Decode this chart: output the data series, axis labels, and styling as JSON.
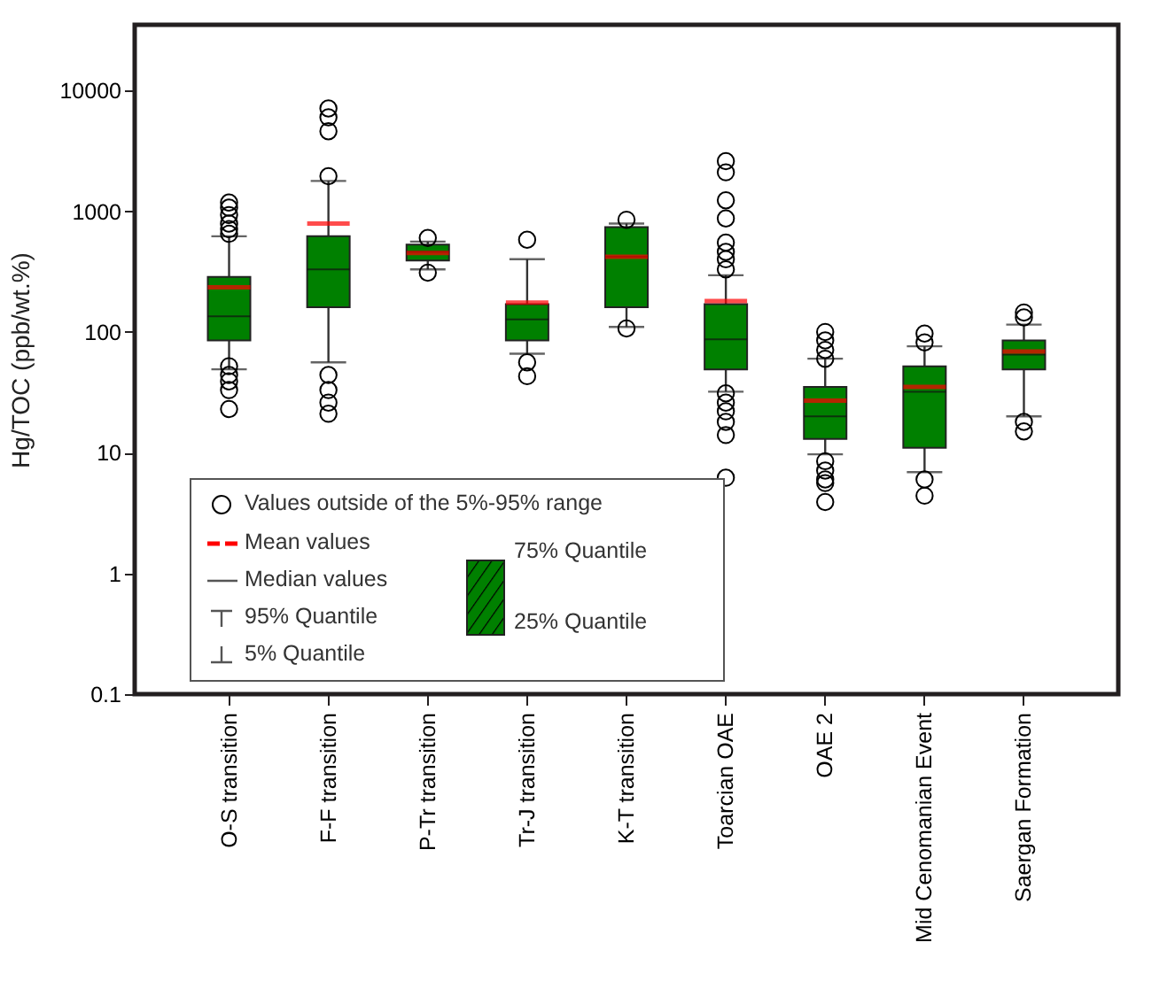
{
  "chart_data": {
    "type": "box",
    "ylabel": "Hg/TOC (ppb/wt.%)",
    "log": true,
    "ylim": [
      0.1,
      35000
    ],
    "yticks": [
      0.1,
      1,
      10,
      100,
      1000,
      10000
    ],
    "grid": false,
    "marker": "circle",
    "categories": [
      "O-S transition",
      "F-F transition",
      "P-Tr transition",
      "Tr-J transition",
      "K-T transition",
      "Toarcian OAE",
      "OAE 2",
      "Mid Cenomanian Event",
      "Saergan Formation"
    ],
    "series": [
      {
        "color": "#008000",
        "boxes": [
          {
            "low": 49,
            "q1": 85,
            "median": 135,
            "q3": 286,
            "high": 620,
            "mean": 234,
            "outliers": [
              1180,
              1070,
              930,
              790,
              710,
              650,
              52,
              44,
              39,
              33,
              23
            ]
          },
          {
            "low": 56,
            "q1": 160,
            "median": 330,
            "q3": 620,
            "high": 1780,
            "mean": 790,
            "outliers": [
              7100,
              6000,
              4600,
              1950,
              44,
              33,
              26,
              21
            ]
          },
          {
            "low": 330,
            "q1": 390,
            "median": 460,
            "q3": 530,
            "high": 560,
            "mean": 450,
            "outliers": [
              600,
              310
            ]
          },
          {
            "low": 66,
            "q1": 85,
            "median": 127,
            "q3": 170,
            "high": 400,
            "mean": 175,
            "outliers": [
              580,
              56,
              43
            ]
          },
          {
            "low": 110,
            "q1": 160,
            "median": 420,
            "q3": 740,
            "high": 790,
            "mean": 420,
            "outliers": [
              850,
              107
            ]
          },
          {
            "low": 32,
            "q1": 49,
            "median": 87,
            "q3": 170,
            "high": 295,
            "mean": 180,
            "outliers": [
              2600,
              2100,
              1230,
              870,
              550,
              460,
              400,
              330,
              31,
              26,
              22,
              18,
              14,
              6.2
            ]
          },
          {
            "low": 9.7,
            "q1": 13,
            "median": 20,
            "q3": 35,
            "high": 60,
            "mean": 27,
            "outliers": [
              100,
              85,
              71,
              60,
              8.5,
              7.1,
              6,
              5.6,
              3.9
            ]
          },
          {
            "low": 6.9,
            "q1": 11,
            "median": 32,
            "q3": 52,
            "high": 76,
            "mean": 35,
            "outliers": [
              97,
              82,
              6,
              4.4
            ]
          },
          {
            "low": 20,
            "q1": 49,
            "median": 65,
            "q3": 85,
            "high": 115,
            "mean": 69,
            "outliers": [
              145,
              132,
              18,
              15
            ]
          }
        ]
      }
    ],
    "annotations": [
      "Values outside of the 5%-95% range",
      "Mean values",
      "Median values",
      "95% Quantile",
      "5% Quantile",
      "75% Quantile",
      "25% Quantile"
    ]
  }
}
